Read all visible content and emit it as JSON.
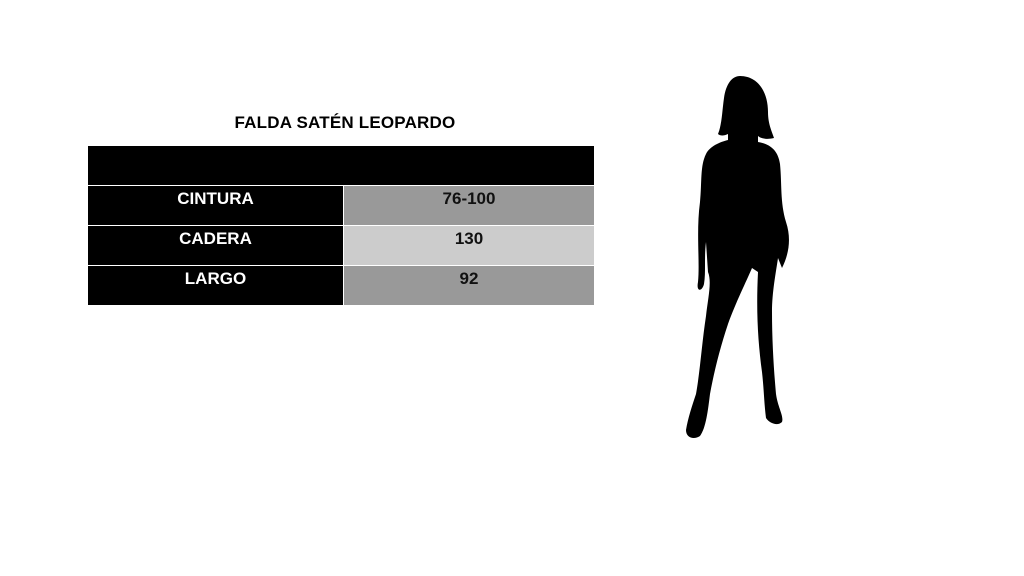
{
  "title": "FALDA SATÉN LEOPARDO",
  "rows": [
    {
      "label": "CINTURA",
      "value": "76-100",
      "color": "#999999"
    },
    {
      "label": "CADERA",
      "value": "130",
      "color": "#cccccc"
    },
    {
      "label": "LARGO",
      "value": "92",
      "color": "#999999"
    }
  ],
  "icons": {
    "silhouette": "woman-silhouette-icon"
  }
}
